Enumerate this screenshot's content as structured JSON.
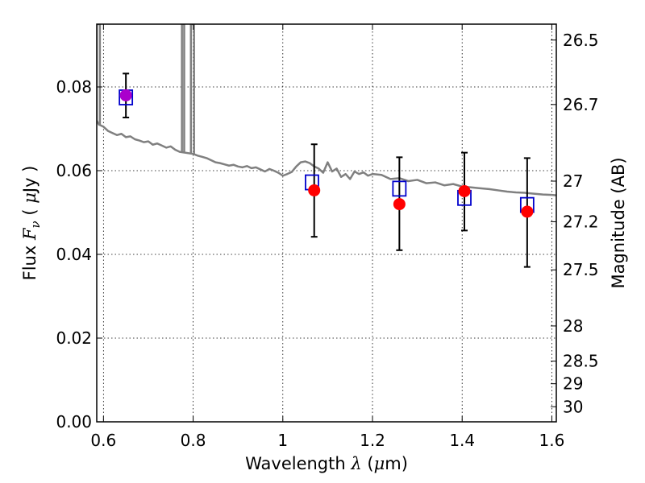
{
  "chart_data": {
    "type": "scatter",
    "xlabel": {
      "prefix": "Wavelength",
      "symbol": "λ",
      "unit_open": "(",
      "unit_mu": "μ",
      "unit_rest": "m)"
    },
    "ylabel": {
      "prefix": "Flux",
      "symbol": "F",
      "subscript": "ν",
      "unit_open": "(",
      "unit_mu": "μ",
      "unit_rest": "Jy",
      "unit_close": ")"
    },
    "ylabel_right": "Magnitude (AB)",
    "xlim": [
      0.585,
      1.61
    ],
    "ylim": [
      0.0,
      0.095
    ],
    "xticks": [
      0.6,
      0.8,
      1.0,
      1.2,
      1.4,
      1.6
    ],
    "xtick_labels": [
      "0.6",
      "0.8",
      "1",
      "1.2",
      "1.4",
      "1.6"
    ],
    "yticks": [
      0.0,
      0.02,
      0.04,
      0.06,
      0.08
    ],
    "ytick_labels": [
      "0.00",
      "0.02",
      "0.04",
      "0.06",
      "0.08"
    ],
    "right_ticks": [
      {
        "label": "26.5",
        "flux": 0.0912
      },
      {
        "label": "26.7",
        "flux": 0.0758
      },
      {
        "label": "27",
        "flux": 0.0575
      },
      {
        "label": "27.2",
        "flux": 0.0478
      },
      {
        "label": "27.5",
        "flux": 0.0363
      },
      {
        "label": "28",
        "flux": 0.0229
      },
      {
        "label": "28.5",
        "flux": 0.0145
      },
      {
        "label": "29",
        "flux": 0.0091
      },
      {
        "label": "30",
        "flux": 0.0036
      }
    ],
    "grid": true,
    "series": [
      {
        "kind": "model-spectrum",
        "color": "#808080",
        "x": [
          0.585,
          0.59,
          0.6,
          0.61,
          0.62,
          0.63,
          0.64,
          0.65,
          0.66,
          0.67,
          0.68,
          0.69,
          0.7,
          0.71,
          0.72,
          0.73,
          0.74,
          0.75,
          0.76,
          0.77,
          0.8,
          0.81,
          0.82,
          0.83,
          0.84,
          0.85,
          0.86,
          0.87,
          0.88,
          0.89,
          0.9,
          0.91,
          0.92,
          0.93,
          0.94,
          0.95,
          0.96,
          0.97,
          0.98,
          0.99,
          1.0,
          1.01,
          1.02,
          1.03,
          1.04,
          1.05,
          1.06,
          1.07,
          1.08,
          1.09,
          1.1,
          1.11,
          1.12,
          1.13,
          1.14,
          1.15,
          1.16,
          1.17,
          1.18,
          1.19,
          1.2,
          1.22,
          1.24,
          1.26,
          1.28,
          1.3,
          1.32,
          1.34,
          1.36,
          1.38,
          1.4,
          1.42,
          1.44,
          1.46,
          1.48,
          1.5,
          1.52,
          1.54,
          1.56,
          1.58,
          1.6,
          1.61
        ],
        "y": [
          0.072,
          0.071,
          0.0705,
          0.0695,
          0.069,
          0.0685,
          0.0688,
          0.068,
          0.0682,
          0.0675,
          0.0672,
          0.0668,
          0.067,
          0.0662,
          0.0665,
          0.066,
          0.0655,
          0.0658,
          0.065,
          0.0645,
          0.064,
          0.0636,
          0.0633,
          0.063,
          0.0625,
          0.062,
          0.0618,
          0.0615,
          0.0612,
          0.0614,
          0.061,
          0.0608,
          0.0611,
          0.0606,
          0.0608,
          0.0603,
          0.0598,
          0.0604,
          0.06,
          0.0595,
          0.0588,
          0.0592,
          0.0597,
          0.061,
          0.062,
          0.0622,
          0.0618,
          0.061,
          0.0605,
          0.0595,
          0.062,
          0.0598,
          0.0605,
          0.0585,
          0.0592,
          0.058,
          0.0598,
          0.0592,
          0.0596,
          0.0588,
          0.0592,
          0.059,
          0.058,
          0.0582,
          0.0575,
          0.0578,
          0.057,
          0.0572,
          0.0565,
          0.0568,
          0.0562,
          0.056,
          0.0558,
          0.0556,
          0.0553,
          0.055,
          0.0548,
          0.0547,
          0.0545,
          0.0543,
          0.0542,
          0.0541
        ]
      },
      {
        "kind": "model-spectrum-emission-lines",
        "color": "#808080",
        "lines": [
          {
            "x": [
              0.585,
              0.585,
              0.592,
              0.592
            ],
            "y": [
              0.072,
              0.095,
              0.095,
              0.071
            ]
          },
          {
            "x": [
              0.775,
              0.775,
              0.78,
              0.78
            ],
            "y": [
              0.0645,
              0.095,
              0.095,
              0.0645
            ]
          },
          {
            "x": [
              0.795,
              0.795,
              0.802,
              0.802
            ],
            "y": [
              0.0642,
              0.095,
              0.095,
              0.064
            ]
          }
        ]
      },
      {
        "kind": "model-photometry",
        "marker": "open-square",
        "color": "#0000cc",
        "x": [
          0.65,
          1.065,
          1.26,
          1.405,
          1.545
        ],
        "y": [
          0.0775,
          0.0572,
          0.0557,
          0.0535,
          0.0518
        ]
      },
      {
        "kind": "observed",
        "marker": "filled-circle",
        "color": "#ff0000",
        "x": [
          0.65,
          1.07,
          1.26,
          1.405,
          1.545
        ],
        "y": [
          0.078,
          0.0553,
          0.052,
          0.0551,
          0.0502
        ],
        "yerr_low": [
          0.0727,
          0.0442,
          0.041,
          0.0457,
          0.037
        ],
        "yerr_high": [
          0.0832,
          0.0663,
          0.0632,
          0.0643,
          0.063
        ]
      }
    ],
    "colors": {
      "spectrum": "#808080",
      "square": "#0000cc",
      "circle": "#ff0000",
      "overlap": "#aa00cc",
      "errorbar": "#000000",
      "grid": "#000000"
    }
  }
}
